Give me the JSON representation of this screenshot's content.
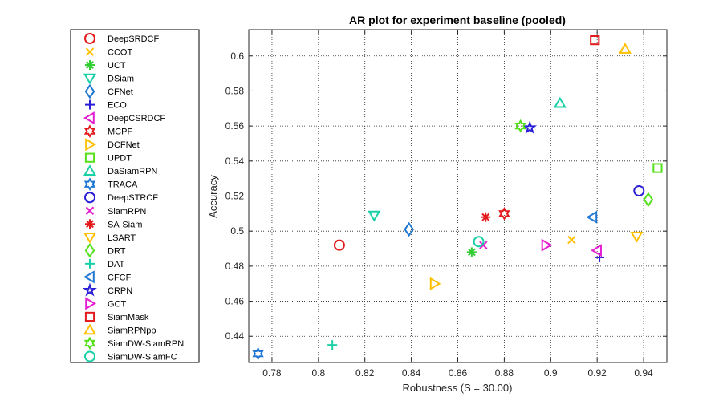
{
  "chart_data": {
    "type": "scatter",
    "title": "AR plot for experiment baseline (pooled)",
    "xlabel": "Robustness (S = 30.00)",
    "ylabel": "Accuracy",
    "xlim": [
      0.77,
      0.95
    ],
    "ylim": [
      0.425,
      0.615
    ],
    "xticks": [
      0.78,
      0.8,
      0.82,
      0.84,
      0.86,
      0.88,
      0.9,
      0.92,
      0.94
    ],
    "xtick_labels": [
      "0.78",
      "0.8",
      "0.82",
      "0.84",
      "0.86",
      "0.88",
      "0.9",
      "0.92",
      "0.94"
    ],
    "yticks": [
      0.44,
      0.46,
      0.48,
      0.5,
      0.52,
      0.54,
      0.56,
      0.58,
      0.6
    ],
    "ytick_labels": [
      "0.44",
      "0.46",
      "0.48",
      "0.5",
      "0.52",
      "0.54",
      "0.56",
      "0.58",
      "0.6"
    ],
    "grid": "dotted",
    "legend_position": "outside-left",
    "series": [
      {
        "name": "DeepSRDCF",
        "marker": "circle",
        "color": "#e31a1c",
        "x": 0.809,
        "y": 0.492
      },
      {
        "name": "CCOT",
        "marker": "x",
        "color": "#ffc000",
        "x": 0.909,
        "y": 0.495
      },
      {
        "name": "UCT",
        "marker": "asterisk",
        "color": "#33cc33",
        "x": 0.866,
        "y": 0.488
      },
      {
        "name": "DSiam",
        "marker": "triangle-down",
        "color": "#19cfa6",
        "x": 0.824,
        "y": 0.509
      },
      {
        "name": "CFNet",
        "marker": "diamond",
        "color": "#1f77d4",
        "x": 0.839,
        "y": 0.501
      },
      {
        "name": "ECO",
        "marker": "plus",
        "color": "#2a1fd6",
        "x": 0.921,
        "y": 0.485
      },
      {
        "name": "DeepCSRDCF",
        "marker": "triangle-left",
        "color": "#e61ed1",
        "x": 0.92,
        "y": 0.489
      },
      {
        "name": "MCPF",
        "marker": "hexagram",
        "color": "#e31a1c",
        "x": 0.88,
        "y": 0.51
      },
      {
        "name": "DCFNet",
        "marker": "triangle-right",
        "color": "#ffc000",
        "x": 0.85,
        "y": 0.47
      },
      {
        "name": "UPDT",
        "marker": "square",
        "color": "#55e01b",
        "x": 0.946,
        "y": 0.536
      },
      {
        "name": "DaSiamRPN",
        "marker": "triangle-up",
        "color": "#19cfa6",
        "x": 0.904,
        "y": 0.573
      },
      {
        "name": "TRACA",
        "marker": "hexagram",
        "color": "#1f77d4",
        "x": 0.774,
        "y": 0.43
      },
      {
        "name": "DeepSTRCF",
        "marker": "circle",
        "color": "#2a1fd6",
        "x": 0.938,
        "y": 0.523
      },
      {
        "name": "SiamRPN",
        "marker": "x",
        "color": "#e61ed1",
        "x": 0.871,
        "y": 0.492
      },
      {
        "name": "SA-Siam",
        "marker": "asterisk",
        "color": "#e31a1c",
        "x": 0.872,
        "y": 0.508
      },
      {
        "name": "LSART",
        "marker": "triangle-down",
        "color": "#ffc000",
        "x": 0.937,
        "y": 0.497
      },
      {
        "name": "DRT",
        "marker": "diamond",
        "color": "#55e01b",
        "x": 0.942,
        "y": 0.518
      },
      {
        "name": "DAT",
        "marker": "plus",
        "color": "#19cfa6",
        "x": 0.806,
        "y": 0.435
      },
      {
        "name": "CFCF",
        "marker": "triangle-left",
        "color": "#1f77d4",
        "x": 0.918,
        "y": 0.508
      },
      {
        "name": "CRPN",
        "marker": "pentagram",
        "color": "#2a1fd6",
        "x": 0.891,
        "y": 0.559
      },
      {
        "name": "GCT",
        "marker": "triangle-right",
        "color": "#e61ed1",
        "x": 0.898,
        "y": 0.492
      },
      {
        "name": "SiamMask",
        "marker": "square",
        "color": "#e31a1c",
        "x": 0.919,
        "y": 0.609
      },
      {
        "name": "SiamRPNpp",
        "marker": "triangle-up",
        "color": "#ffc000",
        "x": 0.932,
        "y": 0.604
      },
      {
        "name": "SiamDW-SiamRPN",
        "marker": "hexagram",
        "color": "#55e01b",
        "x": 0.887,
        "y": 0.56
      },
      {
        "name": "SiamDW-SiamFC",
        "marker": "circle",
        "color": "#19cfa6",
        "x": 0.869,
        "y": 0.494
      }
    ]
  }
}
